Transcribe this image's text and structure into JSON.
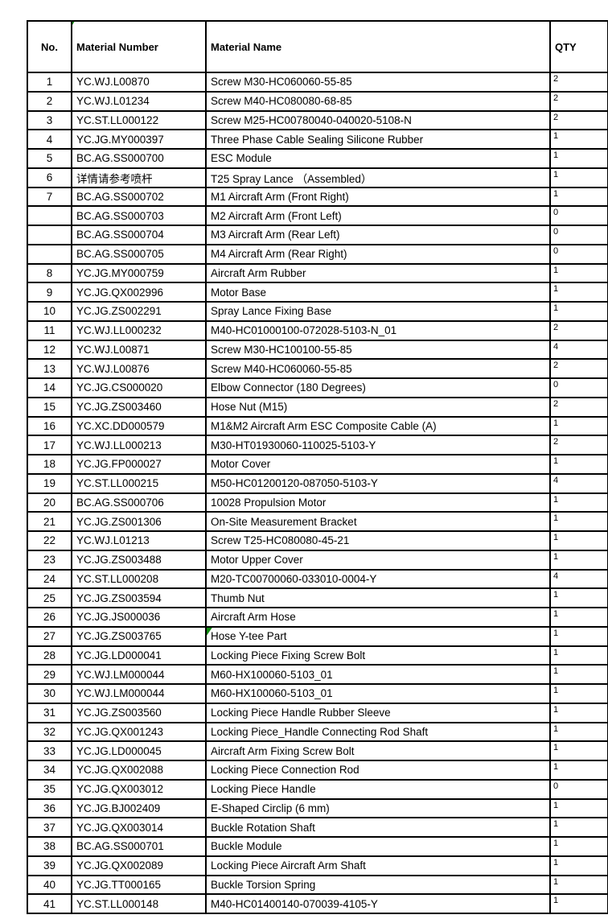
{
  "table": {
    "columns": [
      {
        "key": "no",
        "label": "No."
      },
      {
        "key": "number",
        "label": "Material Number",
        "header_flag": true
      },
      {
        "key": "name",
        "label": "Material Name"
      },
      {
        "key": "qty",
        "label": "QTY"
      }
    ],
    "rows": [
      {
        "no": "1",
        "number": "YC.WJ.L00870",
        "name": "Screw M30-HC060060-55-85",
        "qty": "2"
      },
      {
        "no": "2",
        "number": "YC.WJ.L01234",
        "name": "Screw M40-HC080080-68-85",
        "qty": "2"
      },
      {
        "no": "3",
        "number": "YC.ST.LL000122",
        "name": "Screw M25-HC00780040-040020-5108-N",
        "qty": "2"
      },
      {
        "no": "4",
        "number": "YC.JG.MY000397",
        "name": "Three Phase Cable Sealing Silicone Rubber",
        "qty": "1"
      },
      {
        "no": "5",
        "number": "BC.AG.SS000700",
        "name": "ESC Module",
        "qty": "1"
      },
      {
        "no": "6",
        "number": "详情请参考喷杆",
        "name": "T25 Spray Lance （Assembled）",
        "qty": "1"
      },
      {
        "no": "7",
        "number": "BC.AG.SS000702",
        "name": "M1 Aircraft Arm (Front Right)",
        "qty": "1"
      },
      {
        "no": "",
        "number": "BC.AG.SS000703",
        "name": "M2 Aircraft Arm (Front Left)",
        "qty": "0"
      },
      {
        "no": "",
        "number": "BC.AG.SS000704",
        "name": "M3 Aircraft Arm (Rear Left)",
        "qty": "0"
      },
      {
        "no": "",
        "number": "BC.AG.SS000705",
        "name": "M4 Aircraft Arm (Rear Right)",
        "qty": "0"
      },
      {
        "no": "8",
        "number": "YC.JG.MY000759",
        "name": "Aircraft Arm Rubber",
        "qty": "1"
      },
      {
        "no": "9",
        "number": "YC.JG.QX002996",
        "name": "Motor Base",
        "qty": "1"
      },
      {
        "no": "10",
        "number": "YC.JG.ZS002291",
        "name": "Spray Lance Fixing Base",
        "qty": "1"
      },
      {
        "no": "11",
        "number": "YC.WJ.LL000232",
        "name": "M40-HC01000100-072028-5103-N_01",
        "qty": "2"
      },
      {
        "no": "12",
        "number": "YC.WJ.L00871",
        "name": "Screw M30-HC100100-55-85",
        "qty": "4"
      },
      {
        "no": "13",
        "number": "YC.WJ.L00876",
        "name": "Screw M40-HC060060-55-85",
        "qty": "2"
      },
      {
        "no": "14",
        "number": "YC.JG.CS000020",
        "name": "Elbow Connector (180 Degrees)",
        "qty": "0"
      },
      {
        "no": "15",
        "number": "YC.JG.ZS003460",
        "name": "Hose Nut (M15)",
        "qty": "2"
      },
      {
        "no": "16",
        "number": "YC.XC.DD000579",
        "name": "M1&M2 Aircraft Arm ESC Composite Cable (A)",
        "qty": "1"
      },
      {
        "no": "17",
        "number": "YC.WJ.LL000213",
        "name": "M30-HT01930060-110025-5103-Y",
        "qty": "2"
      },
      {
        "no": "18",
        "number": "YC.JG.FP000027",
        "name": "Motor Cover",
        "qty": "1"
      },
      {
        "no": "19",
        "number": "YC.ST.LL000215",
        "name": "M50-HC01200120-087050-5103-Y",
        "qty": "4"
      },
      {
        "no": "20",
        "number": "BC.AG.SS000706",
        "name": "10028 Propulsion Motor",
        "qty": "1"
      },
      {
        "no": "21",
        "number": "YC.JG.ZS001306",
        "name": "On-Site Measurement Bracket",
        "qty": "1"
      },
      {
        "no": "22",
        "number": "YC.WJ.L01213",
        "name": "Screw T25-HC080080-45-21",
        "qty": "1"
      },
      {
        "no": "23",
        "number": "YC.JG.ZS003488",
        "name": "Motor Upper Cover",
        "qty": "1"
      },
      {
        "no": "24",
        "number": "YC.ST.LL000208",
        "name": "M20-TC00700060-033010-0004-Y",
        "qty": "4"
      },
      {
        "no": "25",
        "number": "YC.JG.ZS003594",
        "name": "Thumb Nut",
        "qty": "1"
      },
      {
        "no": "26",
        "number": "YC.JG.JS000036",
        "name": "Aircraft Arm Hose",
        "qty": "1"
      },
      {
        "no": "27",
        "number": "YC.JG.ZS003765",
        "name": "Hose Y-tee Part",
        "qty": "1",
        "name_flag": true
      },
      {
        "no": "28",
        "number": "YC.JG.LD000041",
        "name": "Locking Piece Fixing Screw Bolt",
        "qty": "1"
      },
      {
        "no": "29",
        "number": "YC.WJ.LM000044",
        "name": "M60-HX100060-5103_01",
        "qty": "1"
      },
      {
        "no": "30",
        "number": "YC.WJ.LM000044",
        "name": "M60-HX100060-5103_01",
        "qty": "1"
      },
      {
        "no": "31",
        "number": "YC.JG.ZS003560",
        "name": "Locking Piece Handle Rubber Sleeve",
        "qty": "1"
      },
      {
        "no": "32",
        "number": "YC.JG.QX001243",
        "name": "Locking Piece_Handle Connecting Rod Shaft",
        "qty": "1"
      },
      {
        "no": "33",
        "number": "YC.JG.LD000045",
        "name": "Aircraft Arm Fixing Screw Bolt",
        "qty": "1"
      },
      {
        "no": "34",
        "number": "YC.JG.QX002088",
        "name": "Locking Piece Connection Rod",
        "qty": "1"
      },
      {
        "no": "35",
        "number": "YC.JG.QX003012",
        "name": "Locking Piece Handle",
        "qty": "0"
      },
      {
        "no": "36",
        "number": "YC.JG.BJ002409",
        "name": "E-Shaped Circlip (6 mm)",
        "qty": "1"
      },
      {
        "no": "37",
        "number": "YC.JG.QX003014",
        "name": "Buckle Rotation Shaft",
        "qty": "1"
      },
      {
        "no": "38",
        "number": "BC.AG.SS000701",
        "name": "Buckle Module",
        "qty": "1"
      },
      {
        "no": "39",
        "number": "YC.JG.QX002089",
        "name": "Locking Piece Aircraft Arm Shaft",
        "qty": "1"
      },
      {
        "no": "40",
        "number": "YC.JG.TT000165",
        "name": "Buckle Torsion Spring",
        "qty": "1"
      },
      {
        "no": "41",
        "number": "YC.ST.LL000148",
        "name": "M40-HC01400140-070039-4105-Y",
        "qty": "1"
      }
    ]
  },
  "flags": {
    "color": "#128a12",
    "locations": [
      "material-number-header-cell",
      "row-27-material-name-cell"
    ]
  }
}
